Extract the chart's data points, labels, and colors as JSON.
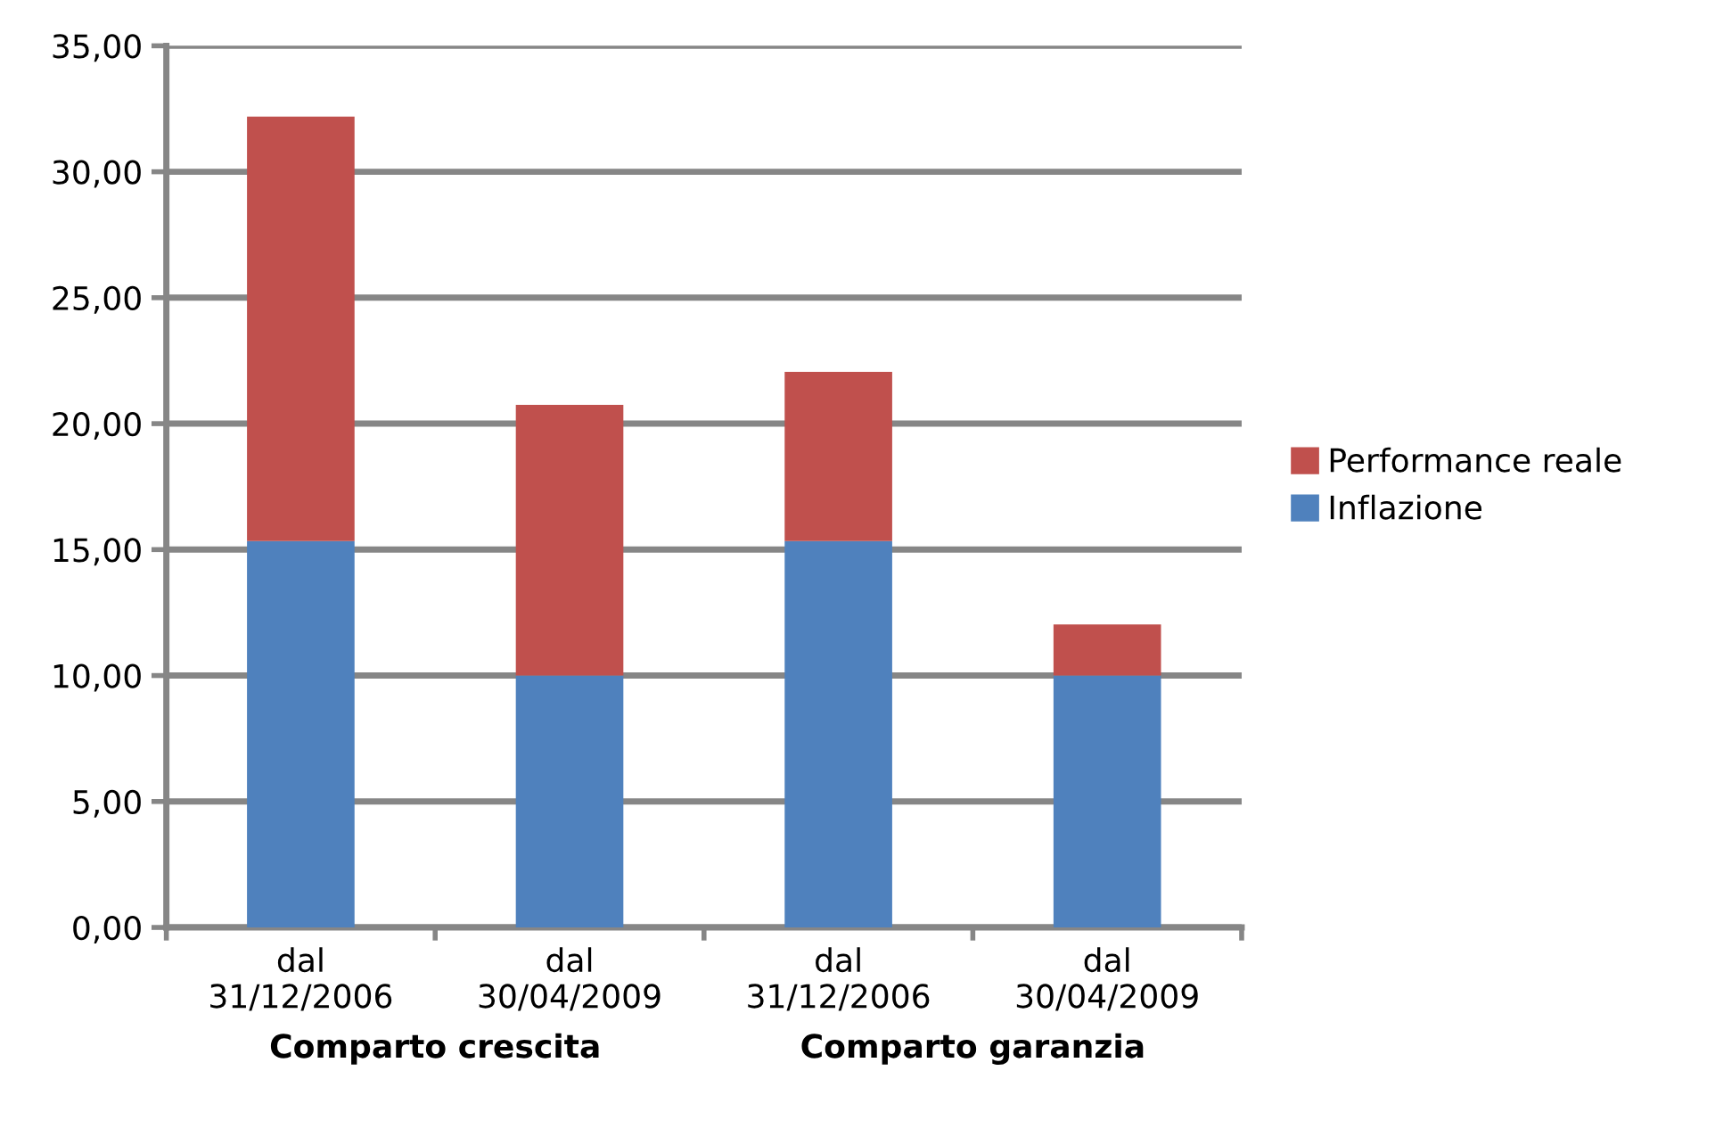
{
  "chart_data": {
    "type": "bar",
    "stacked": true,
    "categories": [
      "dal\n31/12/2006",
      "dal\n30/04/2009",
      "dal\n31/12/2006",
      "dal\n30/04/2009"
    ],
    "series": [
      {
        "name": "Inflazione",
        "color": "#4f81bd",
        "values": [
          15.34,
          10.0,
          15.34,
          10.0
        ]
      },
      {
        "name": "Performance reale",
        "color": "#c0504d",
        "values": [
          16.85,
          10.75,
          6.72,
          2.03
        ]
      }
    ],
    "ylim": [
      0,
      35
    ],
    "yticks": [
      {
        "value": 0,
        "label": "0,00"
      },
      {
        "value": 5,
        "label": "5,00"
      },
      {
        "value": 10,
        "label": "10,00"
      },
      {
        "value": 15,
        "label": "15,00"
      },
      {
        "value": 20,
        "label": "20,00"
      },
      {
        "value": 25,
        "label": "25,00"
      },
      {
        "value": 30,
        "label": "30,00"
      },
      {
        "value": 35,
        "label": "35,00"
      }
    ],
    "grid": "y",
    "legend": "right",
    "annotations": [
      "Comparto crescita",
      "Comparto garanzia"
    ]
  }
}
